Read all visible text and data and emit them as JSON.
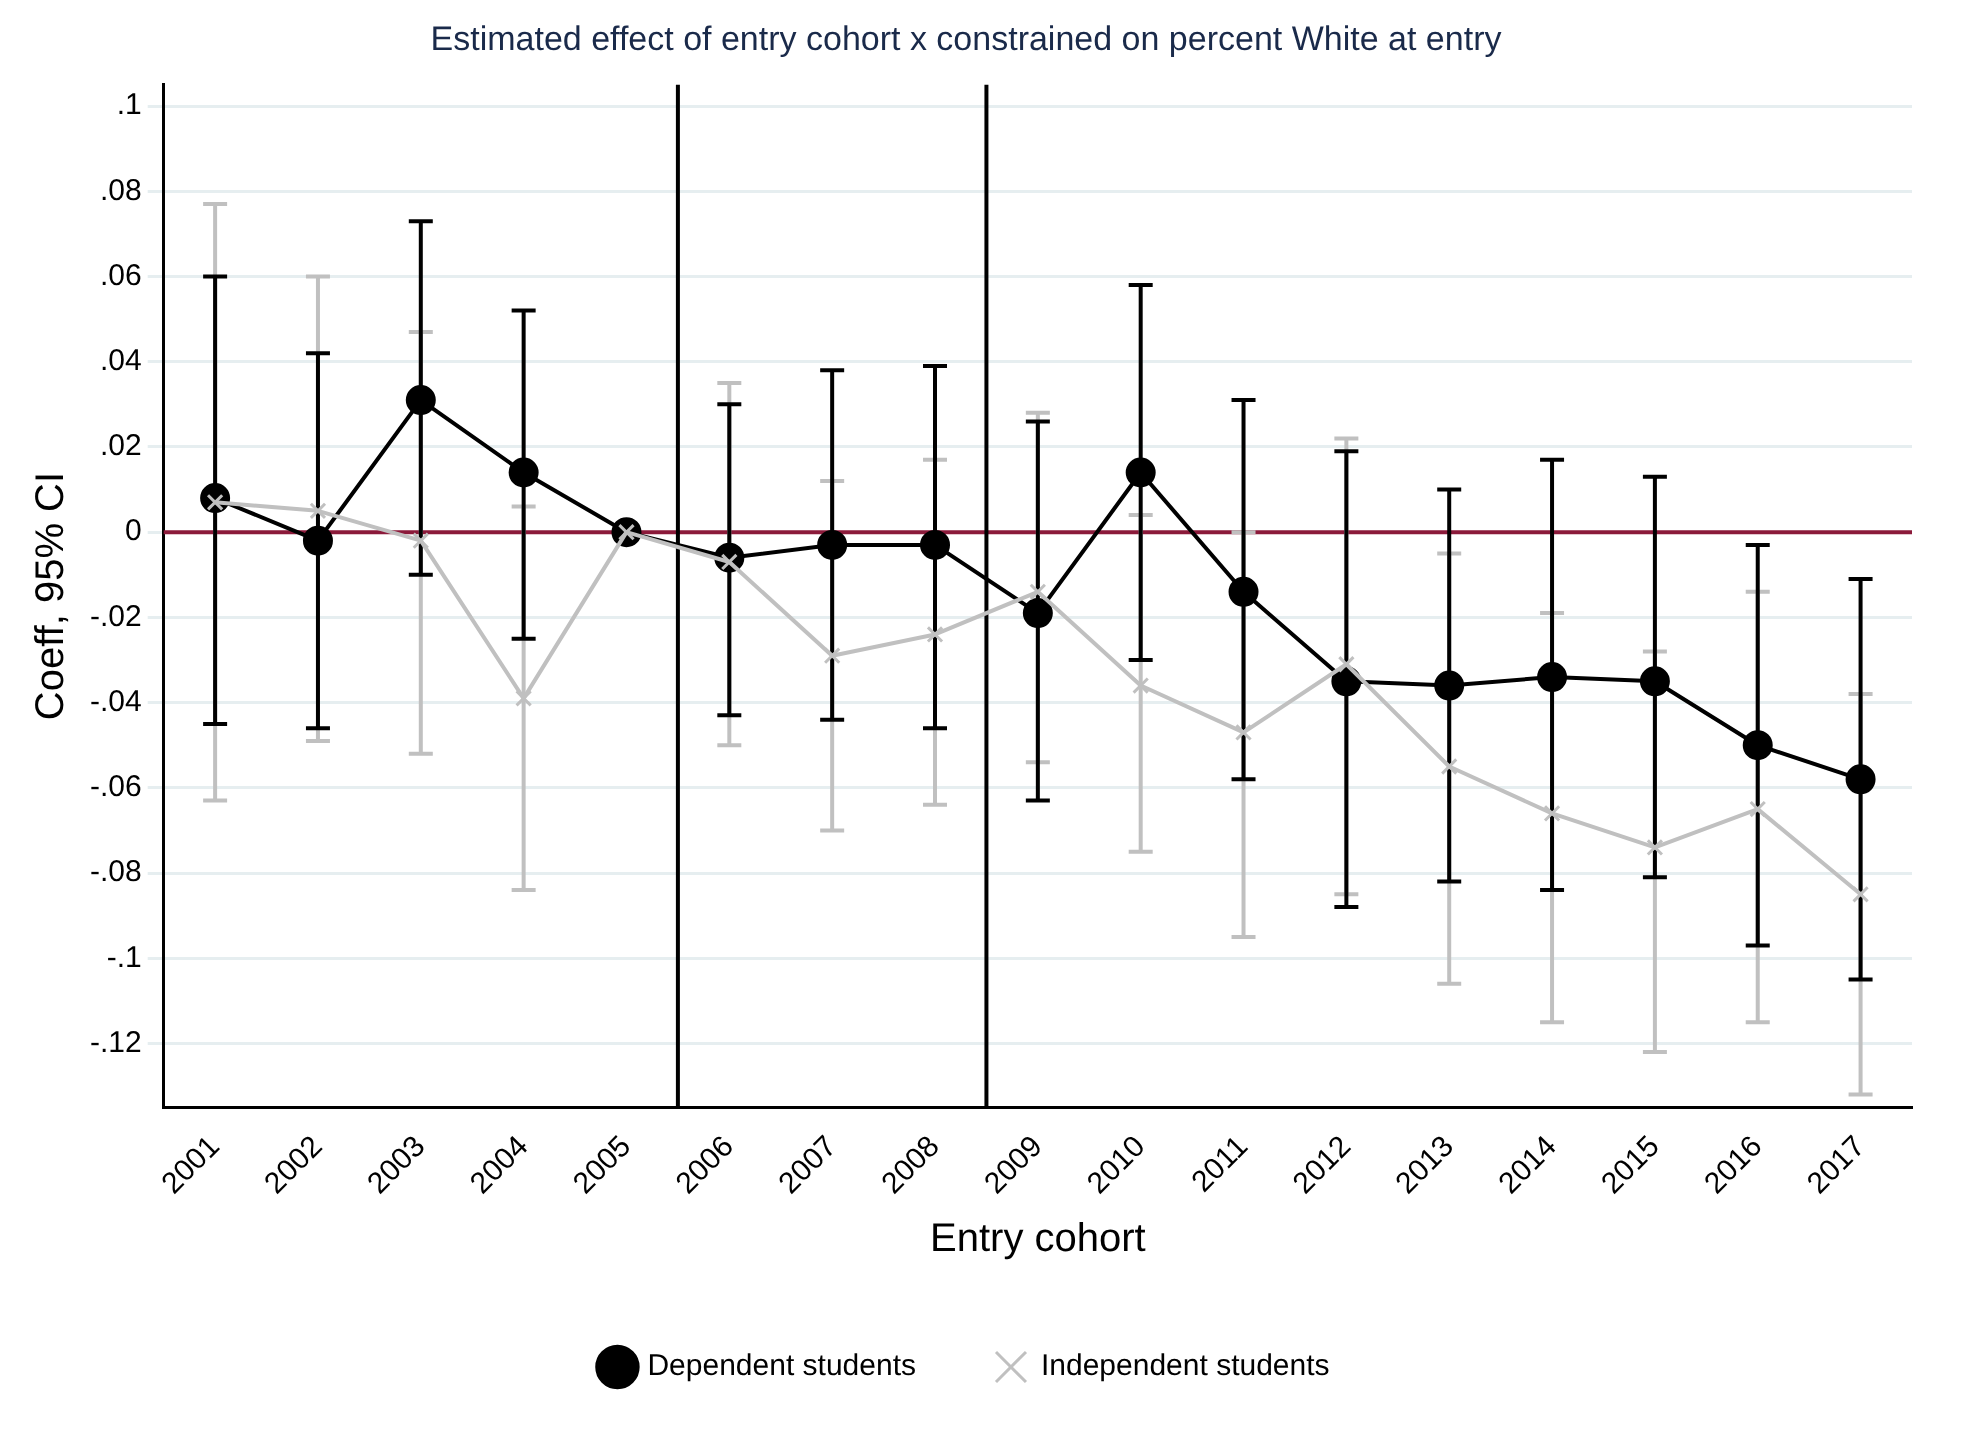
{
  "chart_data": {
    "type": "line",
    "title": "Estimated effect of entry cohort x constrained on percent White at entry",
    "xlabel": "Entry cohort",
    "ylabel": "Coeff, 95% CI",
    "x": [
      2001,
      2002,
      2003,
      2004,
      2005,
      2006,
      2007,
      2008,
      2009,
      2010,
      2011,
      2012,
      2013,
      2014,
      2015,
      2016,
      2017
    ],
    "xlim": [
      2000.5,
      2017.5
    ],
    "xticks": [
      2001,
      2002,
      2003,
      2004,
      2005,
      2006,
      2007,
      2008,
      2009,
      2010,
      2011,
      2012,
      2013,
      2014,
      2015,
      2016,
      2017
    ],
    "ylim": [
      -0.135,
      0.105
    ],
    "yticks": [
      {
        "value": -0.12,
        "label": "-.12"
      },
      {
        "value": -0.1,
        "label": "-.1"
      },
      {
        "value": -0.08,
        "label": "-.08"
      },
      {
        "value": -0.06,
        "label": "-.06"
      },
      {
        "value": -0.04,
        "label": "-.04"
      },
      {
        "value": -0.02,
        "label": "-.02"
      },
      0,
      {
        "value": 0.02,
        "label": ".02"
      },
      {
        "value": 0.04,
        "label": ".04"
      },
      {
        "value": 0.06,
        "label": ".06"
      },
      {
        "value": 0.08,
        "label": ".08"
      },
      {
        "value": 0.1,
        "label": ".1"
      }
    ],
    "series": [
      {
        "name": "Dependent students",
        "color": "#000000",
        "marker": "circle",
        "values": [
          0.008,
          -0.002,
          0.031,
          0.014,
          0,
          -0.006,
          -0.003,
          -0.003,
          -0.019,
          0.014,
          -0.014,
          -0.035,
          -0.036,
          -0.034,
          -0.035,
          -0.05,
          -0.058
        ],
        "errors": [
          [
            -0.045,
            0.06
          ],
          [
            -0.046,
            0.042
          ],
          [
            -0.01,
            0.073
          ],
          [
            -0.025,
            0.052
          ],
          null,
          [
            -0.043,
            0.03
          ],
          [
            -0.044,
            0.038
          ],
          [
            -0.046,
            0.039
          ],
          [
            -0.063,
            0.026
          ],
          [
            -0.03,
            0.058
          ],
          [
            -0.058,
            0.031
          ],
          [
            -0.088,
            0.019
          ],
          [
            -0.082,
            0.01
          ],
          [
            -0.084,
            0.017
          ],
          [
            -0.081,
            0.013
          ],
          [
            -0.097,
            -0.003
          ],
          [
            -0.105,
            -0.011
          ]
        ]
      },
      {
        "name": "Independent students",
        "color": "#c0c0c0",
        "marker": "cross",
        "values": [
          0.007,
          0.005,
          -0.002,
          -0.039,
          0,
          -0.007,
          -0.029,
          -0.024,
          -0.014,
          -0.036,
          -0.047,
          -0.031,
          -0.055,
          -0.066,
          -0.074,
          -0.065,
          -0.085
        ],
        "errors": [
          [
            -0.063,
            0.077
          ],
          [
            -0.049,
            0.06
          ],
          [
            -0.052,
            0.047
          ],
          [
            -0.084,
            0.006
          ],
          null,
          [
            -0.05,
            0.035
          ],
          [
            -0.07,
            0.012
          ],
          [
            -0.064,
            0.017
          ],
          [
            -0.054,
            0.028
          ],
          [
            -0.075,
            0.004
          ],
          [
            -0.095,
            0
          ],
          [
            -0.085,
            0.022
          ],
          [
            -0.106,
            -0.005
          ],
          [
            -0.115,
            -0.019
          ],
          [
            -0.122,
            -0.028
          ],
          [
            -0.115,
            -0.014
          ],
          [
            -0.132,
            -0.038
          ]
        ]
      }
    ],
    "ref_lines": [
      {
        "axis": "y",
        "value": 0,
        "color": "#8b1a3a"
      },
      {
        "axis": "x",
        "value": 2005.5,
        "color": "#000000"
      },
      {
        "axis": "x",
        "value": 2008.5,
        "color": "#000000"
      }
    ],
    "grid": "y",
    "legend": "bottom"
  }
}
